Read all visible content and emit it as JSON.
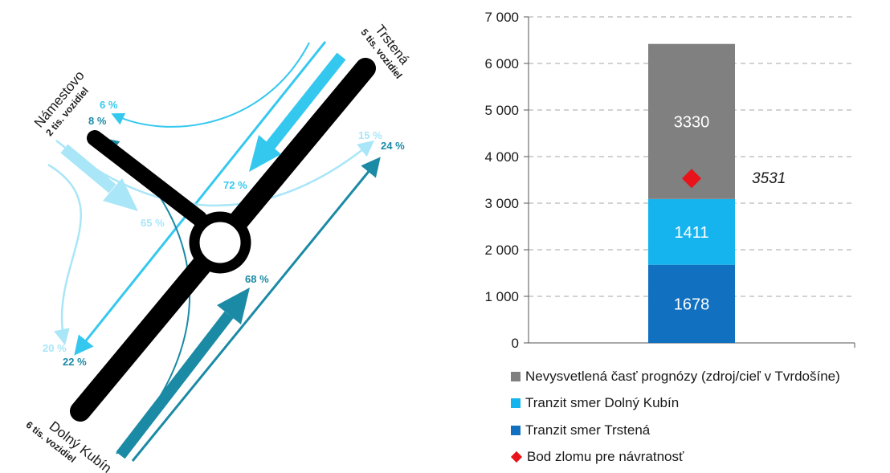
{
  "diagram": {
    "cities": {
      "north_name": "Trstená",
      "north_volume": "5 tis. vozidiel",
      "west_name": "Námestovo",
      "west_volume": "2 tis. vozidiel",
      "south_name": "Dolný Kubín",
      "south_volume": "6 tis. vozidiel"
    },
    "percentages": {
      "p6": "6 %",
      "p8": "8 %",
      "p72": "72 %",
      "p65": "65 %",
      "p15": "15 %",
      "p24": "24 %",
      "p68": "68 %",
      "p20": "20 %",
      "p22": "22 %"
    },
    "colors": {
      "dark_teal": "#1b8aa5",
      "cyan": "#35c8ef",
      "light_cyan": "#a9e6f8",
      "road": "#000000"
    }
  },
  "chart_data": {
    "type": "bar",
    "stacked": true,
    "categories": [
      ""
    ],
    "series": [
      {
        "name": "Tranzit smer Trstená",
        "values": [
          1678
        ],
        "color": "#1270c0"
      },
      {
        "name": "Tranzit smer Dolný Kubín",
        "values": [
          1411
        ],
        "color": "#16b4ef"
      },
      {
        "name": "Nevysvetlená časť prognózy (zdroj/cieľ v Tvrdošíne)",
        "values": [
          3330
        ],
        "color": "#808080"
      }
    ],
    "marker": {
      "name": "Bod zlomu pre návratnosť",
      "value": 3531,
      "label": "3531",
      "color": "#e8131b"
    },
    "ylim": [
      0,
      7000
    ],
    "yticks": [
      "0",
      "1 000",
      "2 000",
      "3 000",
      "4 000",
      "5 000",
      "6 000",
      "7 000"
    ],
    "grid": true,
    "legend_position": "bottom"
  }
}
